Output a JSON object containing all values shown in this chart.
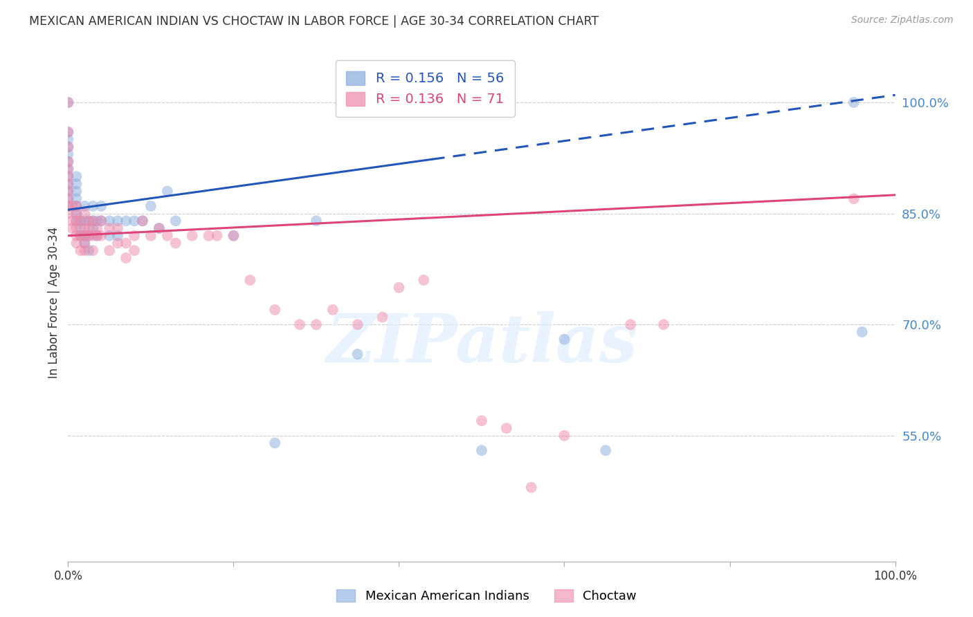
{
  "title": "MEXICAN AMERICAN INDIAN VS CHOCTAW IN LABOR FORCE | AGE 30-34 CORRELATION CHART",
  "source": "Source: ZipAtlas.com",
  "ylabel": "In Labor Force | Age 30-34",
  "watermark": "ZIPatlas",
  "blue_color": "#88aadd",
  "pink_color": "#ee88aa",
  "blue_line_color": "#2255bb",
  "pink_line_color": "#dd4477",
  "blue_R": 0.156,
  "blue_N": 56,
  "pink_R": 0.136,
  "pink_N": 71,
  "xlim": [
    0.0,
    1.0
  ],
  "ylim": [
    0.38,
    1.08
  ],
  "yticks": [
    0.55,
    0.7,
    0.85,
    1.0
  ],
  "ytick_labels": [
    "55.0%",
    "70.0%",
    "85.0%",
    "100.0%"
  ],
  "xticks": [
    0.0,
    1.0
  ],
  "xtick_labels": [
    "0.0%",
    "100.0%"
  ],
  "blue_scatter_x": [
    0.0,
    0.0,
    0.0,
    0.0,
    0.0,
    0.0,
    0.0,
    0.0,
    0.0,
    0.0,
    0.0,
    0.0,
    0.01,
    0.01,
    0.01,
    0.01,
    0.01,
    0.01,
    0.01,
    0.015,
    0.015,
    0.015,
    0.02,
    0.02,
    0.02,
    0.02,
    0.025,
    0.025,
    0.025,
    0.03,
    0.03,
    0.03,
    0.035,
    0.035,
    0.04,
    0.04,
    0.05,
    0.05,
    0.06,
    0.06,
    0.07,
    0.08,
    0.09,
    0.1,
    0.11,
    0.12,
    0.13,
    0.2,
    0.25,
    0.3,
    0.35,
    0.5,
    0.6,
    0.65,
    0.95,
    0.96
  ],
  "blue_scatter_y": [
    0.86,
    0.87,
    0.88,
    0.89,
    0.9,
    0.91,
    0.92,
    0.93,
    0.94,
    0.95,
    0.96,
    1.0,
    0.84,
    0.85,
    0.86,
    0.87,
    0.88,
    0.89,
    0.9,
    0.82,
    0.83,
    0.84,
    0.81,
    0.82,
    0.84,
    0.86,
    0.8,
    0.82,
    0.84,
    0.83,
    0.84,
    0.86,
    0.82,
    0.84,
    0.84,
    0.86,
    0.82,
    0.84,
    0.82,
    0.84,
    0.84,
    0.84,
    0.84,
    0.86,
    0.83,
    0.88,
    0.84,
    0.82,
    0.54,
    0.84,
    0.66,
    0.53,
    0.68,
    0.53,
    1.0,
    0.69
  ],
  "pink_scatter_x": [
    0.0,
    0.0,
    0.0,
    0.0,
    0.0,
    0.0,
    0.0,
    0.0,
    0.0,
    0.0,
    0.0,
    0.005,
    0.005,
    0.005,
    0.01,
    0.01,
    0.01,
    0.01,
    0.01,
    0.01,
    0.015,
    0.015,
    0.015,
    0.02,
    0.02,
    0.02,
    0.02,
    0.02,
    0.025,
    0.025,
    0.025,
    0.03,
    0.03,
    0.03,
    0.035,
    0.035,
    0.04,
    0.04,
    0.05,
    0.05,
    0.06,
    0.06,
    0.07,
    0.07,
    0.08,
    0.08,
    0.09,
    0.1,
    0.11,
    0.12,
    0.13,
    0.15,
    0.17,
    0.18,
    0.2,
    0.22,
    0.25,
    0.28,
    0.3,
    0.32,
    0.35,
    0.38,
    0.4,
    0.43,
    0.5,
    0.53,
    0.56,
    0.6,
    0.68,
    0.72,
    0.95
  ],
  "pink_scatter_y": [
    0.85,
    0.86,
    0.87,
    0.88,
    0.89,
    0.9,
    0.91,
    0.92,
    0.94,
    0.96,
    1.0,
    0.83,
    0.84,
    0.86,
    0.81,
    0.82,
    0.83,
    0.84,
    0.85,
    0.86,
    0.8,
    0.82,
    0.84,
    0.8,
    0.81,
    0.82,
    0.83,
    0.85,
    0.82,
    0.83,
    0.84,
    0.8,
    0.82,
    0.84,
    0.82,
    0.83,
    0.82,
    0.84,
    0.8,
    0.83,
    0.81,
    0.83,
    0.79,
    0.81,
    0.8,
    0.82,
    0.84,
    0.82,
    0.83,
    0.82,
    0.81,
    0.82,
    0.82,
    0.82,
    0.82,
    0.76,
    0.72,
    0.7,
    0.7,
    0.72,
    0.7,
    0.71,
    0.75,
    0.76,
    0.57,
    0.56,
    0.48,
    0.55,
    0.7,
    0.7,
    0.87
  ]
}
